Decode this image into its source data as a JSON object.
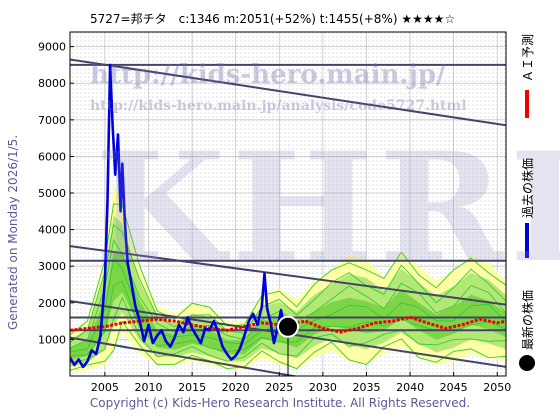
{
  "header": {
    "title": "5727=邦チタ　c:1346  m:2051(+52%)  t:1455(+8%)  ★★★★☆"
  },
  "side_text": "Generated on Monday 2026/1/5.",
  "legend": {
    "forecast": "ＡＩ予測",
    "past": "過去の株価",
    "latest": "最新の株価"
  },
  "watermarks": {
    "url_main": "http://kids-hero.main.jp/",
    "url_analysis": "http://kids-hero.main.jp/analysis/code5727.html",
    "brand": "KHRI"
  },
  "footer": {
    "copyright": "Copyright (c) Kids-Hero Research Institute. All Rights Reserved."
  },
  "colors": {
    "past": "#0000dd",
    "forecast": "#ee0000",
    "band_green": "#33cc33",
    "band_yellow": "#ffff99",
    "trend_line": "#44446a",
    "latest": "#000000"
  },
  "chart_data": {
    "type": "line",
    "xlim": [
      2001,
      2051
    ],
    "ylim": [
      0,
      9400
    ],
    "x_ticks": [
      2005,
      2010,
      2015,
      2020,
      2025,
      2030,
      2035,
      2040,
      2045,
      2050
    ],
    "y_ticks": [
      1000,
      2000,
      3000,
      4000,
      5000,
      6000,
      7000,
      8000,
      9000
    ],
    "grid": true,
    "latest_point": {
      "x": 2026.0,
      "y": 1346
    },
    "past_series": {
      "x": [
        2001.0,
        2001.5,
        2002.0,
        2002.5,
        2003.0,
        2003.5,
        2004.0,
        2004.5,
        2005.0,
        2005.3,
        2005.6,
        2005.9,
        2006.2,
        2006.5,
        2006.8,
        2007.0,
        2007.3,
        2007.6,
        2008.0,
        2008.5,
        2009.0,
        2009.5,
        2010.0,
        2010.5,
        2011.0,
        2011.5,
        2012.0,
        2012.5,
        2013.0,
        2013.5,
        2014.0,
        2014.5,
        2015.0,
        2015.5,
        2016.0,
        2016.5,
        2017.0,
        2017.5,
        2018.0,
        2018.5,
        2019.0,
        2019.5,
        2020.0,
        2020.5,
        2021.0,
        2021.5,
        2022.0,
        2022.5,
        2023.0,
        2023.3,
        2023.6,
        2024.0,
        2024.4,
        2024.8,
        2025.2,
        2025.6,
        2026.0
      ],
      "y": [
        500,
        300,
        450,
        250,
        400,
        700,
        600,
        1100,
        2600,
        4800,
        8500,
        6800,
        5500,
        6600,
        4500,
        5800,
        4200,
        3100,
        2600,
        1900,
        1500,
        950,
        1400,
        900,
        1100,
        1250,
        950,
        800,
        1050,
        1400,
        1200,
        1600,
        1300,
        1100,
        900,
        1300,
        1250,
        1500,
        1200,
        800,
        600,
        450,
        550,
        750,
        1100,
        1500,
        1700,
        1400,
        1900,
        2800,
        1850,
        1450,
        900,
        1300,
        1800,
        1350,
        1346
      ]
    },
    "forecast_series": {
      "x": [
        2001,
        2003,
        2005,
        2007,
        2009,
        2011,
        2013,
        2015,
        2017,
        2019,
        2021,
        2023,
        2025,
        2026,
        2028,
        2030,
        2032,
        2034,
        2036,
        2038,
        2040,
        2042,
        2044,
        2046,
        2048,
        2050,
        2051
      ],
      "y": [
        1250,
        1300,
        1350,
        1450,
        1500,
        1550,
        1500,
        1400,
        1300,
        1250,
        1350,
        1450,
        1400,
        1400,
        1500,
        1300,
        1200,
        1300,
        1450,
        1500,
        1600,
        1450,
        1300,
        1400,
        1550,
        1450,
        1500
      ]
    },
    "trend_lines": [
      {
        "x": [
          2001,
          2051
        ],
        "y": [
          8650,
          6850
        ]
      },
      {
        "x": [
          2001,
          2051
        ],
        "y": [
          8500,
          8500
        ]
      },
      {
        "x": [
          2001,
          2051
        ],
        "y": [
          3550,
          1950
        ]
      },
      {
        "x": [
          2001,
          2051
        ],
        "y": [
          3150,
          3150
        ]
      },
      {
        "x": [
          2001,
          2051
        ],
        "y": [
          2050,
          250
        ]
      },
      {
        "x": [
          2001,
          2051
        ],
        "y": [
          1600,
          1600
        ]
      },
      {
        "x": [
          2001,
          2051
        ],
        "y": [
          1250,
          1250
        ]
      },
      {
        "x": [
          2001,
          2051
        ],
        "y": [
          1050,
          -1000
        ]
      }
    ],
    "bands": {
      "x": [
        2001,
        2003,
        2005,
        2006,
        2007,
        2009,
        2011,
        2013,
        2015,
        2017,
        2019,
        2021,
        2023,
        2025,
        2027,
        2029,
        2031,
        2033,
        2035,
        2037,
        2039,
        2041,
        2043,
        2045,
        2047,
        2049,
        2051
      ],
      "upper": [
        1200,
        1500,
        3300,
        5200,
        4800,
        3000,
        1900,
        1700,
        2000,
        1900,
        1500,
        1500,
        2200,
        2400,
        2100,
        2600,
        2900,
        3300,
        3200,
        2700,
        3400,
        3000,
        2600,
        2900,
        3300,
        3100,
        2600
      ],
      "lower": [
        100,
        150,
        300,
        700,
        1200,
        600,
        300,
        300,
        400,
        300,
        200,
        200,
        500,
        300,
        200,
        500,
        700,
        400,
        300,
        600,
        800,
        500,
        300,
        400,
        600,
        500,
        400
      ]
    }
  }
}
